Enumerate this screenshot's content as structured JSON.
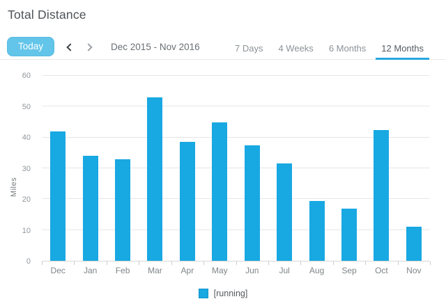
{
  "page": {
    "title": "Total Distance"
  },
  "controls": {
    "today_label": "Today",
    "date_range": "Dec 2015 - Nov 2016",
    "tabs": [
      {
        "label": "7 Days",
        "active": false
      },
      {
        "label": "4 Weeks",
        "active": false
      },
      {
        "label": "6 Months",
        "active": false
      },
      {
        "label": "12 Months",
        "active": true
      }
    ]
  },
  "colors": {
    "bar": "#18a8e2",
    "accent_underline": "#28a7e0",
    "today_button": "#63c5e9"
  },
  "chart_data": {
    "type": "bar",
    "title": "Total Distance",
    "categories": [
      "Dec",
      "Jan",
      "Feb",
      "Mar",
      "Apr",
      "May",
      "Jun",
      "Jul",
      "Aug",
      "Sep",
      "Oct",
      "Nov"
    ],
    "values": [
      42,
      34,
      33,
      53,
      38.5,
      45,
      37.5,
      31.5,
      19.5,
      17,
      42.5,
      11
    ],
    "series": [
      {
        "name": "[running]",
        "values": [
          42,
          34,
          33,
          53,
          38.5,
          45,
          37.5,
          31.5,
          19.5,
          17,
          42.5,
          11
        ]
      }
    ],
    "xlabel": "",
    "ylabel": "Miles",
    "ylim": [
      0,
      60
    ],
    "yticks": [
      0,
      10,
      20,
      30,
      40,
      50,
      60
    ],
    "grid": true,
    "legend": {
      "position": "bottom",
      "entries": [
        {
          "label": "[running]",
          "color": "#18a8e2"
        }
      ]
    }
  }
}
